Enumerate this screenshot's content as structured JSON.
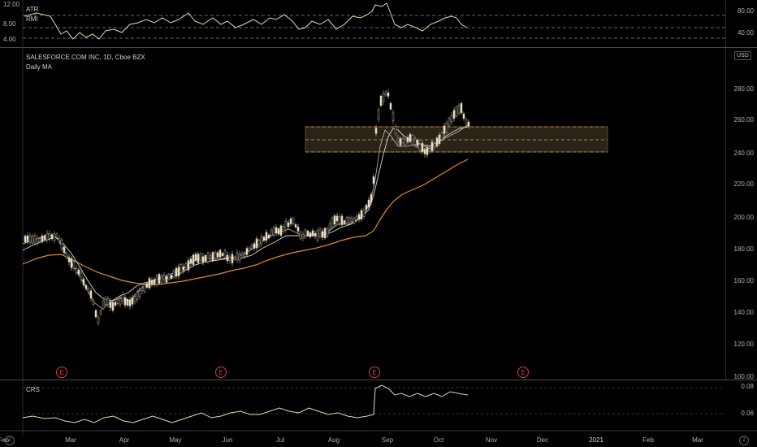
{
  "atr_pane": {
    "title": "ATR",
    "subtitle": "RMI",
    "left_ticks": [
      "12.00",
      "8.00",
      "4.00"
    ],
    "right_ticks": [
      "80.00",
      "40.00"
    ]
  },
  "main_pane": {
    "title": "SALESFORCE.COM INC, 1D, Cboe BZX",
    "indicator": "Daily MA",
    "currency": "USD",
    "y_ticks": [
      "280.00",
      "260.00",
      "240.00",
      "220.00",
      "200.00",
      "180.00",
      "160.00",
      "140.00",
      "120.00",
      "100.00"
    ],
    "earnings_badges": [
      "E",
      "E",
      "E",
      "E"
    ]
  },
  "crs_pane": {
    "title": "CRS",
    "y_ticks": [
      "0.08",
      "0.06"
    ]
  },
  "x_axis": {
    "labels": [
      "Feb",
      "Mar",
      "Apr",
      "May",
      "Jun",
      "Jul",
      "Aug",
      "Sep",
      "Oct",
      "Nov",
      "Dec",
      "2021",
      "Feb",
      "Mar"
    ]
  },
  "corner_icons": {
    "left": "Z",
    "right": "Z"
  },
  "colors": {
    "candle_up": "#e8dcc0",
    "candle_down": "#b8b0a0",
    "ma_fast": "#d8d8d8",
    "ma_slow": "#e08a2a",
    "zone": "#e0a040",
    "earnings": "#d04040"
  }
}
